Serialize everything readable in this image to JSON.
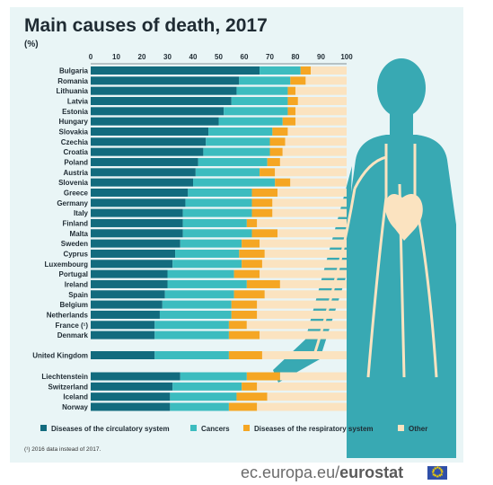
{
  "title": "Main causes of death, 2017",
  "unit": "(%)",
  "footnote": "(¹) 2016 data instead of 2017.",
  "brand": {
    "domain": "ec.europa.eu/",
    "name": "eurostat"
  },
  "colors": {
    "circulatory": "#126b7e",
    "cancers": "#3cbcbf",
    "respiratory": "#f5a623",
    "other": "#fbe3c0",
    "figure": "#38a9b3"
  },
  "chart_data": {
    "type": "bar",
    "stacked": true,
    "orientation": "horizontal",
    "xlim": [
      0,
      100
    ],
    "xticks": [
      0,
      10,
      20,
      30,
      40,
      50,
      60,
      70,
      80,
      90,
      100
    ],
    "categories": [
      "Bulgaria",
      "Romania",
      "Lithuania",
      "Latvia",
      "Estonia",
      "Hungary",
      "Slovakia",
      "Czechia",
      "Croatia",
      "Poland",
      "Austria",
      "Slovenia",
      "Greece",
      "Germany",
      "Italy",
      "Finland",
      "Malta",
      "Sweden",
      "Cyprus",
      "Luxembourg",
      "Portugal",
      "Ireland",
      "Spain",
      "Belgium",
      "Netherlands",
      "France (¹)",
      "Denmark",
      "United Kingdom",
      "Liechtenstein",
      "Switzerland",
      "Iceland",
      "Norway"
    ],
    "series": [
      {
        "name": "Diseases of the circulatory system",
        "values": [
          66,
          58,
          57,
          55,
          52,
          50,
          46,
          45,
          44,
          42,
          41,
          40,
          38,
          37,
          36,
          36,
          36,
          35,
          33,
          32,
          30,
          30,
          29,
          28,
          27,
          25,
          25,
          25,
          35,
          32,
          31,
          31
        ]
      },
      {
        "name": "Cancers",
        "values": [
          16,
          20,
          20,
          22,
          25,
          25,
          25,
          25,
          26,
          27,
          25,
          32,
          25,
          26,
          27,
          25,
          27,
          24,
          25,
          27,
          26,
          31,
          27,
          27,
          28,
          29,
          29,
          29,
          26,
          27,
          26,
          23
        ]
      },
      {
        "name": "Diseases of the respiratory system",
        "values": [
          4,
          6,
          3,
          4,
          3,
          5,
          6,
          6,
          5,
          5,
          6,
          6,
          10,
          8,
          8,
          4,
          10,
          7,
          10,
          8,
          10,
          13,
          12,
          10,
          10,
          7,
          12,
          13,
          13,
          6,
          12,
          11
        ]
      },
      {
        "name": "Other",
        "values": [
          14,
          16,
          20,
          19,
          20,
          20,
          23,
          24,
          25,
          26,
          28,
          22,
          27,
          29,
          29,
          35,
          27,
          34,
          32,
          33,
          34,
          26,
          32,
          35,
          35,
          39,
          34,
          33,
          26,
          35,
          31,
          35
        ]
      }
    ]
  }
}
